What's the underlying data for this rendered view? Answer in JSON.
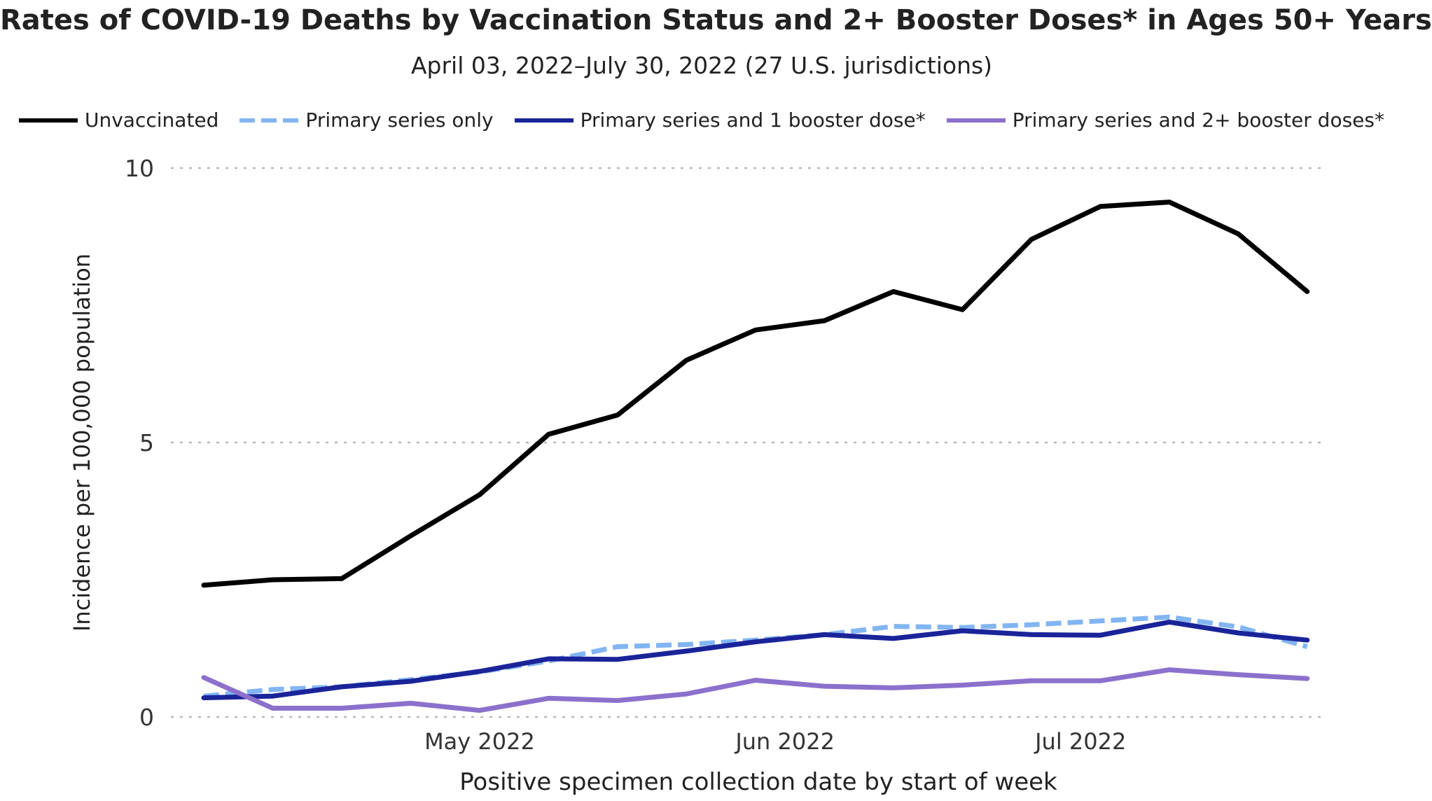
{
  "chart_data": {
    "type": "line",
    "title": "Rates of COVID-19 Deaths by Vaccination Status and 2+ Booster Doses* in Ages 50+ Years",
    "subtitle": "April 03, 2022–July 30, 2022 (27 U.S. jurisdictions)",
    "xlabel": "Positive specimen collection date by start of week",
    "ylabel": "Incidence per 100,000 population",
    "ylim": [
      0,
      10
    ],
    "y_ticks": [
      0,
      5,
      10
    ],
    "x_tick_labels": [
      "May 2022",
      "Jun 2022",
      "Jul 2022"
    ],
    "x_tick_dates": [
      "2022-05-01",
      "2022-06-01",
      "2022-07-01"
    ],
    "grid": "horizontal dotted",
    "legend_position": "top",
    "x": [
      "2022-04-03",
      "2022-04-10",
      "2022-04-17",
      "2022-04-24",
      "2022-05-01",
      "2022-05-08",
      "2022-05-15",
      "2022-05-22",
      "2022-05-29",
      "2022-06-05",
      "2022-06-12",
      "2022-06-19",
      "2022-06-26",
      "2022-07-03",
      "2022-07-10",
      "2022-07-17",
      "2022-07-24"
    ],
    "series": [
      {
        "name": "Unvaccinated",
        "color": "#000000",
        "dash": "solid",
        "values": [
          2.4,
          2.5,
          2.52,
          3.3,
          4.05,
          5.15,
          5.5,
          6.5,
          7.05,
          7.22,
          7.75,
          7.42,
          8.7,
          9.3,
          9.38,
          8.8,
          7.75
        ]
      },
      {
        "name": "Primary series only",
        "color": "#82b5f2",
        "dash": "dashed",
        "values": [
          0.38,
          0.5,
          0.55,
          0.68,
          0.82,
          1.02,
          1.28,
          1.32,
          1.4,
          1.5,
          1.65,
          1.63,
          1.68,
          1.75,
          1.82,
          1.64,
          1.28
        ]
      },
      {
        "name": "Primary series and 1 booster dose*",
        "color": "#1a2499",
        "dash": "solid",
        "values": [
          0.35,
          0.38,
          0.55,
          0.65,
          0.83,
          1.06,
          1.05,
          1.2,
          1.37,
          1.5,
          1.43,
          1.57,
          1.5,
          1.49,
          1.73,
          1.53,
          1.4
        ]
      },
      {
        "name": "Primary series and 2+ booster doses*",
        "color": "#8c70cc",
        "dash": "solid",
        "values": [
          0.72,
          0.16,
          0.16,
          0.25,
          0.12,
          0.34,
          0.3,
          0.42,
          0.67,
          0.56,
          0.53,
          0.58,
          0.66,
          0.66,
          0.86,
          0.77,
          0.7
        ]
      }
    ]
  }
}
